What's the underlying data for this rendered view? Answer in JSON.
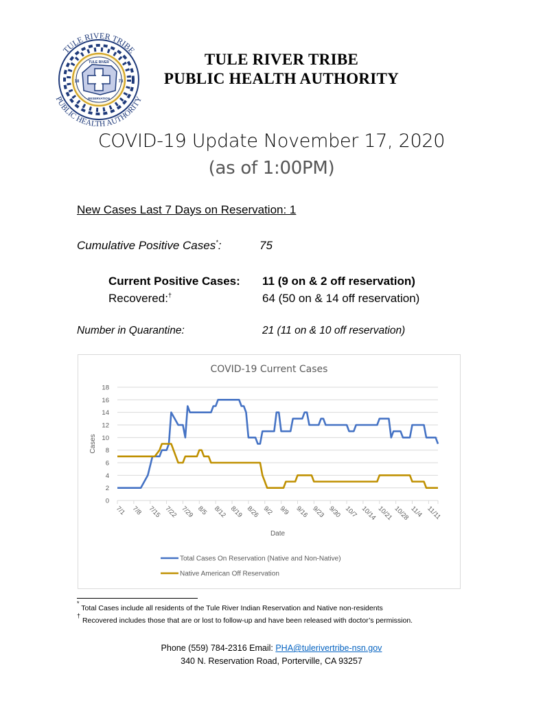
{
  "logo": {
    "name": "tule-river-tribe-pha-seal",
    "top_text": "TULE RIVER TRIBE",
    "bottom_text": "PUBLIC HEALTH AUTHORITY",
    "inner_top": "TULE RIVER",
    "inner_bottom": "RESERVATION",
    "left_year": "18",
    "right_year": "73",
    "colors": {
      "navy": "#1f3a7a",
      "gold": "#d4a82a",
      "light_blue": "#c5cde8"
    }
  },
  "header": {
    "org_line1": "TULE RIVER TRIBE",
    "org_line2": "PUBLIC HEALTH AUTHORITY",
    "title": "COVID-19 Update November 17, 2020",
    "subtitle": "(as of 1:00PM)"
  },
  "stats": {
    "new_cases": "New Cases Last 7 Days on Reservation: 1",
    "cumulative_label": "Cumulative Positive Cases",
    "cumulative_mark": "*",
    "cumulative_colon": ":",
    "cumulative_value": "75",
    "current_label": "Current Positive Cases:",
    "current_value": "11 (9 on & 2 off reservation)",
    "recovered_label": "Recovered:",
    "recovered_mark": "†",
    "recovered_value": "64 (50 on & 14 off reservation)",
    "quarantine_label": "Number in Quarantine:",
    "quarantine_value": "21 (11 on & 10 off reservation)"
  },
  "chart_data": {
    "type": "line",
    "title": "COVID-19 Current Cases",
    "xlabel": "Date",
    "ylabel": "Cases",
    "ylim": [
      0,
      18
    ],
    "yticks": [
      0,
      2,
      4,
      6,
      8,
      10,
      12,
      14,
      16,
      18
    ],
    "grid": true,
    "legend_position": "bottom",
    "x_tick_labels": [
      "7/1",
      "7/8",
      "7/15",
      "7/22",
      "7/29",
      "8/5",
      "8/12",
      "8/19",
      "8/26",
      "9/2",
      "9/9",
      "9/16",
      "9/23",
      "9/30",
      "10/7",
      "10/14",
      "10/21",
      "10/28",
      "11/4",
      "11/11"
    ],
    "x_start": "7/1",
    "x_end": "11/16",
    "x_days": [
      0,
      10,
      13,
      15,
      16,
      19,
      20,
      21,
      22,
      24,
      27,
      28,
      29,
      30,
      32,
      40,
      41,
      42,
      52,
      53,
      54,
      55,
      56,
      57,
      61,
      62,
      63,
      64,
      65,
      67,
      68,
      69,
      70,
      75,
      76,
      77,
      78,
      79,
      80,
      82,
      84,
      85,
      86,
      88,
      89,
      90,
      92,
      98,
      99,
      100,
      101,
      102,
      105,
      110,
      111,
      112,
      113,
      114,
      117,
      118,
      119,
      120,
      122,
      123,
      124,
      126,
      127,
      128,
      131,
      132,
      133,
      134,
      135,
      137,
      138,
      139
    ],
    "series": [
      {
        "name": "Total Cases On Reservation (Native and Non-Native)",
        "color": "#4472c4",
        "points": [
          [
            0,
            2
          ],
          [
            10,
            2
          ],
          [
            13,
            4
          ],
          [
            15,
            7
          ],
          [
            18,
            7
          ],
          [
            19,
            8
          ],
          [
            21,
            8
          ],
          [
            22,
            9
          ],
          [
            23,
            14
          ],
          [
            26,
            12
          ],
          [
            28,
            12
          ],
          [
            29,
            10
          ],
          [
            30,
            15
          ],
          [
            31,
            14
          ],
          [
            40,
            14
          ],
          [
            41,
            15
          ],
          [
            42,
            15
          ],
          [
            43,
            16
          ],
          [
            52,
            16
          ],
          [
            53,
            15
          ],
          [
            54,
            15
          ],
          [
            55,
            14
          ],
          [
            56,
            10
          ],
          [
            59,
            10
          ],
          [
            60,
            9
          ],
          [
            61,
            9
          ],
          [
            62,
            11
          ],
          [
            67,
            11
          ],
          [
            68,
            14
          ],
          [
            69,
            14
          ],
          [
            70,
            11
          ],
          [
            74,
            11
          ],
          [
            75,
            13
          ],
          [
            79,
            13
          ],
          [
            80,
            14
          ],
          [
            81,
            14
          ],
          [
            82,
            12
          ],
          [
            86,
            12
          ],
          [
            87,
            13
          ],
          [
            88,
            13
          ],
          [
            89,
            12
          ],
          [
            98,
            12
          ],
          [
            99,
            11
          ],
          [
            101,
            11
          ],
          [
            102,
            12
          ],
          [
            111,
            12
          ],
          [
            112,
            13
          ],
          [
            116,
            13
          ],
          [
            117,
            10
          ],
          [
            118,
            11
          ],
          [
            121,
            11
          ],
          [
            122,
            10
          ],
          [
            125,
            10
          ],
          [
            126,
            12
          ],
          [
            131,
            12
          ],
          [
            132,
            10
          ],
          [
            136,
            10
          ],
          [
            137,
            9
          ]
        ]
      },
      {
        "name": "Native American Off Reservation",
        "color": "#bf9000",
        "points": [
          [
            0,
            7
          ],
          [
            16,
            7
          ],
          [
            18,
            8
          ],
          [
            19,
            9
          ],
          [
            23,
            9
          ],
          [
            25,
            7
          ],
          [
            26,
            6
          ],
          [
            28,
            6
          ],
          [
            29,
            7
          ],
          [
            34,
            7
          ],
          [
            35,
            8
          ],
          [
            36,
            8
          ],
          [
            37,
            7
          ],
          [
            39,
            7
          ],
          [
            40,
            6
          ],
          [
            61,
            6
          ],
          [
            62,
            4
          ],
          [
            63,
            3
          ],
          [
            64,
            2
          ],
          [
            71,
            2
          ],
          [
            72,
            3
          ],
          [
            76,
            3
          ],
          [
            77,
            4
          ],
          [
            83,
            4
          ],
          [
            84,
            3
          ],
          [
            111,
            3
          ],
          [
            112,
            4
          ],
          [
            125,
            4
          ],
          [
            126,
            3
          ],
          [
            131,
            3
          ],
          [
            132,
            2
          ],
          [
            137,
            2
          ]
        ]
      }
    ]
  },
  "footnotes": {
    "note1_mark": "*",
    "note1": "Total Cases include all residents of the Tule River Indian Reservation and Native non-residents",
    "note2_mark": "†",
    "note2": "Recovered includes those that are or lost to follow-up and have been released with doctor’s permission."
  },
  "contact": {
    "phone_label": "Phone (559) 784-2316 Email: ",
    "email": "PHA@tulerivertribe-nsn.gov",
    "address": "340 N. Reservation Road, Porterville, CA 93257"
  }
}
